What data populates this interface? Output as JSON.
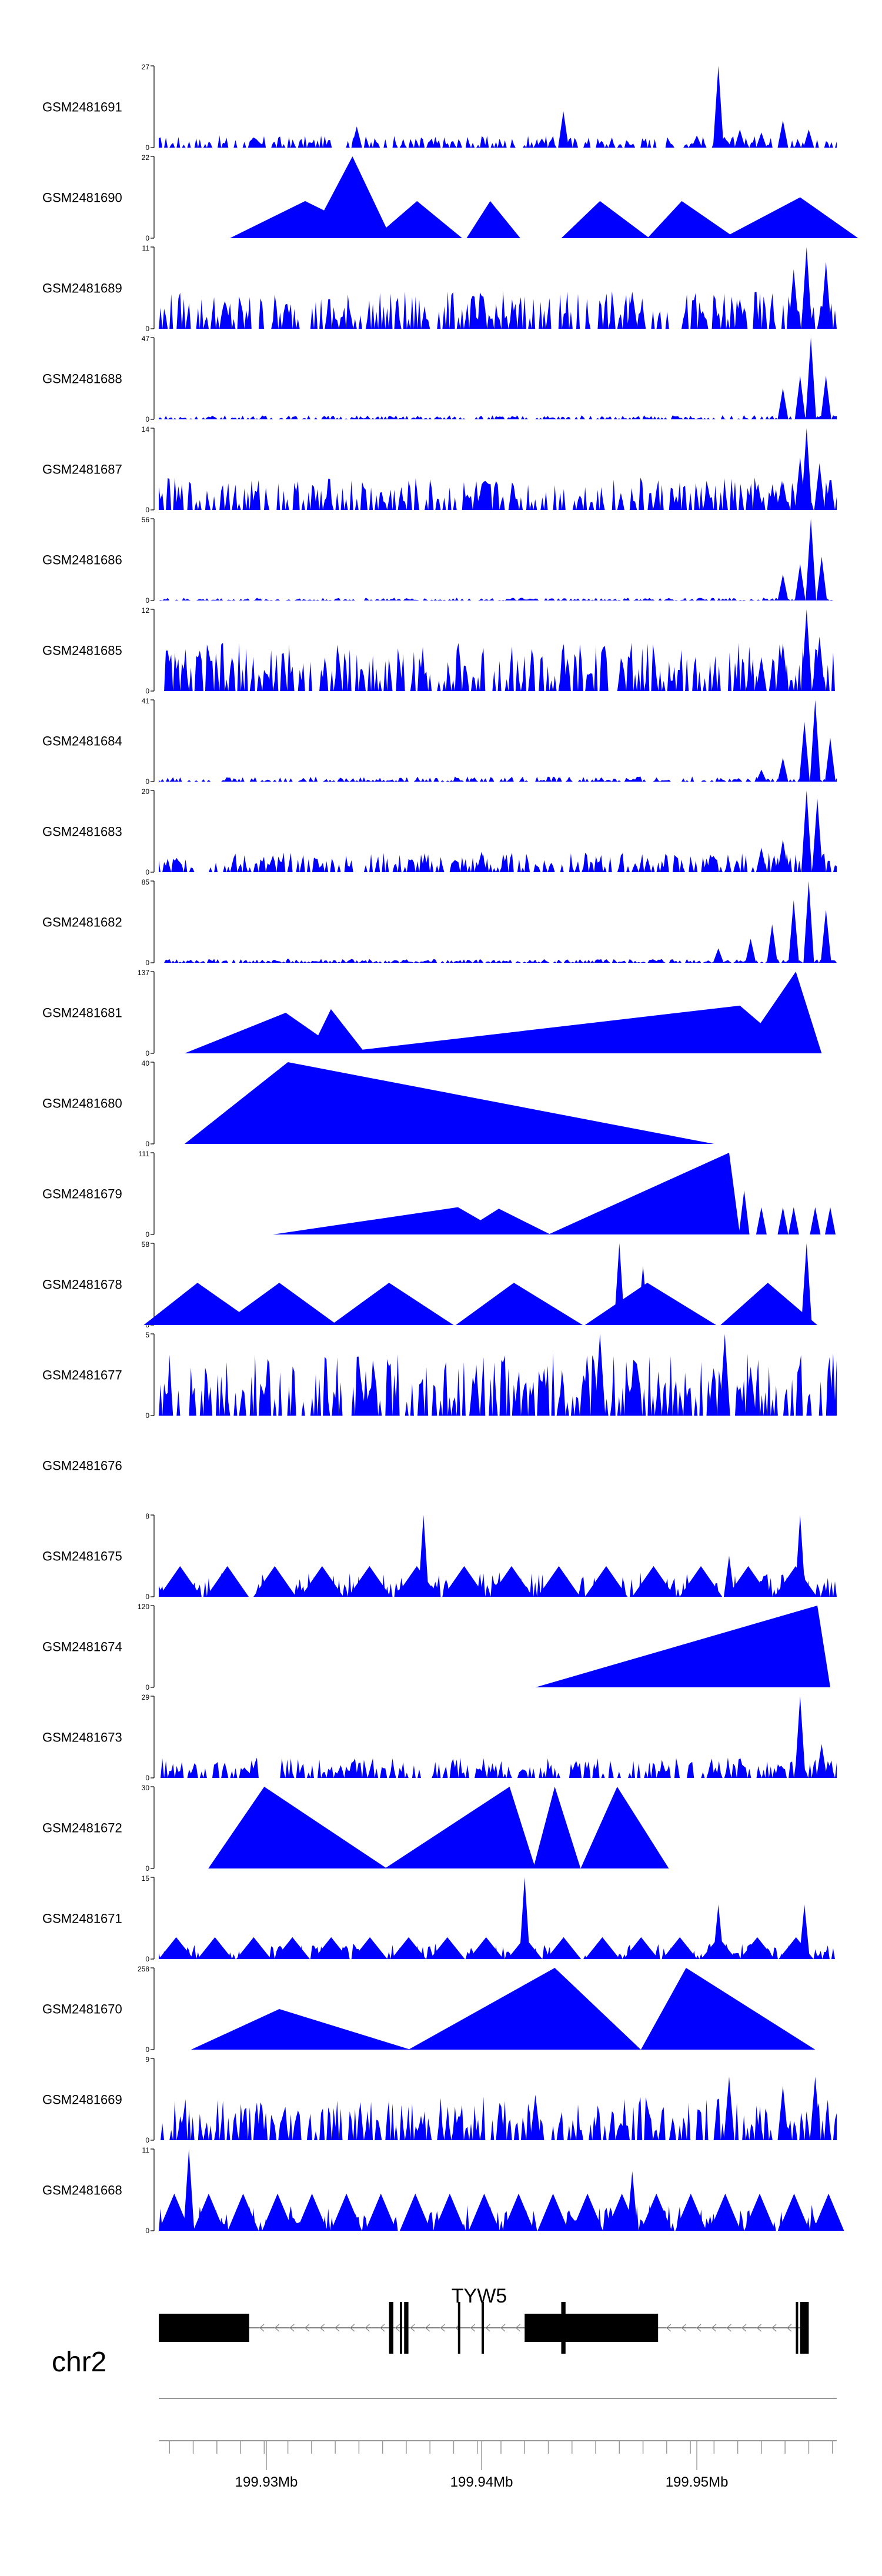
{
  "chart_data": {
    "type": "area",
    "title": "",
    "chromosome": "chr2",
    "xlim": [
      199.925,
      199.9565
    ],
    "x_unit": "Mb",
    "axis_ticks": [
      199.93,
      199.935,
      199.94,
      199.945,
      199.95,
      199.955
    ],
    "axis_labels": [
      "199.93Mb",
      "199.94Mb",
      "199.95Mb"
    ],
    "gene": {
      "name": "TYW5",
      "strand": "-",
      "exons": [
        [
          199.925,
          199.9292
        ],
        [
          199.9357,
          199.9359
        ],
        [
          199.9362,
          199.9363
        ],
        [
          199.9364,
          199.9366
        ],
        [
          199.9389,
          199.939
        ],
        [
          199.94,
          199.9401
        ],
        [
          199.942,
          199.9482
        ],
        [
          199.9437,
          199.9439
        ],
        [
          199.9546,
          199.9547
        ],
        [
          199.9548,
          199.9552
        ]
      ],
      "thick": [
        199.925,
        199.9292,
        199.942,
        199.9482
      ]
    },
    "series": [
      {
        "name": "GSM2481691",
        "ymax": 27,
        "peaks": [
          [
            199.9342,
            7
          ],
          [
            199.9428,
            3
          ],
          [
            199.9438,
            12
          ],
          [
            199.95,
            4
          ],
          [
            199.951,
            27
          ],
          [
            199.952,
            6
          ],
          [
            199.953,
            5
          ],
          [
            199.954,
            9
          ],
          [
            199.9552,
            6
          ]
        ],
        "noise": 2.5
      },
      {
        "name": "GSM2481690",
        "ymax": 22,
        "triangles": [
          [
            199.9283,
            199.9318,
            199.9353,
            10
          ],
          [
            199.932,
            199.934,
            199.9358,
            22
          ],
          [
            199.935,
            199.937,
            199.9391,
            10
          ],
          [
            199.9393,
            199.9404,
            199.9418,
            10
          ],
          [
            199.9437,
            199.9455,
            199.9478,
            10
          ],
          [
            199.9477,
            199.9493,
            199.9518,
            10
          ],
          [
            199.9512,
            199.9548,
            199.9575,
            11
          ]
        ]
      },
      {
        "name": "GSM2481689",
        "ymax": 11,
        "peaks": [
          [
            199.947,
            5
          ],
          [
            199.952,
            4
          ],
          [
            199.9545,
            8
          ],
          [
            199.9551,
            11
          ],
          [
            199.956,
            9
          ]
        ],
        "noise": 3.2
      },
      {
        "name": "GSM2481688",
        "ymax": 47,
        "peaks": [
          [
            199.954,
            18
          ],
          [
            199.9548,
            25
          ],
          [
            199.9553,
            47
          ],
          [
            199.956,
            25
          ]
        ],
        "noise": 1.5
      },
      {
        "name": "GSM2481687",
        "ymax": 14,
        "peaks": [
          [
            199.954,
            5
          ],
          [
            199.9548,
            9
          ],
          [
            199.9551,
            14
          ],
          [
            199.9557,
            8
          ]
        ],
        "noise": 3.5
      },
      {
        "name": "GSM2481686",
        "ymax": 56,
        "peaks": [
          [
            199.954,
            18
          ],
          [
            199.9548,
            25
          ],
          [
            199.9553,
            56
          ],
          [
            199.9558,
            30
          ]
        ],
        "noise": 1.2
      },
      {
        "name": "GSM2481685",
        "ymax": 12,
        "peaks": [
          [
            199.953,
            5
          ],
          [
            199.954,
            7
          ],
          [
            199.9551,
            12
          ],
          [
            199.9557,
            8
          ]
        ],
        "noise": 4.5
      },
      {
        "name": "GSM2481684",
        "ymax": 41,
        "peaks": [
          [
            199.953,
            6
          ],
          [
            199.954,
            12
          ],
          [
            199.955,
            30
          ],
          [
            199.9555,
            41
          ],
          [
            199.9562,
            22
          ]
        ],
        "noise": 1.6
      },
      {
        "name": "GSM2481683",
        "ymax": 20,
        "peaks": [
          [
            199.94,
            5
          ],
          [
            199.953,
            6
          ],
          [
            199.954,
            8
          ],
          [
            199.9551,
            20
          ],
          [
            199.9556,
            18
          ]
        ],
        "noise": 3
      },
      {
        "name": "GSM2481682",
        "ymax": 85,
        "peaks": [
          [
            199.951,
            15
          ],
          [
            199.9525,
            25
          ],
          [
            199.9535,
            40
          ],
          [
            199.9545,
            65
          ],
          [
            199.9552,
            85
          ],
          [
            199.956,
            55
          ]
        ],
        "noise": 2.5
      },
      {
        "name": "GSM2481681",
        "ymax": 137,
        "triangles": [
          [
            199.9262,
            199.9309,
            199.9336,
            68
          ],
          [
            199.932,
            199.933,
            199.9346,
            74
          ],
          [
            199.933,
            199.952,
            199.9546,
            80
          ],
          [
            199.952,
            199.9546,
            199.9558,
            137
          ]
        ]
      },
      {
        "name": "GSM2481680",
        "ymax": 40,
        "triangles": [
          [
            199.9262,
            199.931,
            199.9508,
            40
          ]
        ]
      },
      {
        "name": "GSM2481679",
        "ymax": 111,
        "triangles": [
          [
            199.9303,
            199.9389,
            199.9411,
            37
          ],
          [
            199.9389,
            199.9408,
            199.9432,
            35
          ],
          [
            199.9431,
            199.9515,
            199.952,
            111
          ]
        ],
        "peaks": [
          [
            199.9522,
            60
          ],
          [
            199.953,
            37
          ],
          [
            199.954,
            37
          ],
          [
            199.9545,
            37
          ],
          [
            199.9555,
            37
          ],
          [
            199.9562,
            37
          ]
        ]
      },
      {
        "name": "GSM2481678",
        "ymax": 58,
        "triangles": [
          [
            199.9243,
            199.9268,
            199.9296,
            30
          ],
          [
            199.9279,
            199.9306,
            199.9333,
            30
          ],
          [
            199.933,
            199.9357,
            199.9387,
            30
          ],
          [
            199.9388,
            199.9415,
            199.9447,
            30
          ],
          [
            199.9448,
            199.9477,
            199.9509,
            30
          ],
          [
            199.9511,
            199.9533,
            199.9556,
            30
          ]
        ],
        "peaks": [
          [
            199.9464,
            58
          ],
          [
            199.9475,
            42
          ],
          [
            199.953,
            22
          ],
          [
            199.9551,
            58
          ]
        ]
      },
      {
        "name": "GSM2481677",
        "ymax": 5,
        "peaks": [
          [
            199.9455,
            5
          ],
          [
            199.9513,
            5
          ],
          [
            199.9525,
            3
          ]
        ],
        "noise": 2.4
      },
      {
        "name": "GSM2481676",
        "ymax": null
      },
      {
        "name": "GSM2481675",
        "ymax": 8,
        "triangles_repeat": {
          "start": 199.925,
          "end": 199.9565,
          "step": 0.0022,
          "h": 3
        },
        "peaks": [
          [
            199.9373,
            8
          ],
          [
            199.9515,
            4
          ],
          [
            199.9548,
            8
          ]
        ],
        "noise": 1.5
      },
      {
        "name": "GSM2481674",
        "ymax": 120,
        "triangles": [
          [
            199.9425,
            199.9556,
            199.9562,
            120
          ]
        ]
      },
      {
        "name": "GSM2481673",
        "ymax": 29,
        "peaks": [
          [
            199.9548,
            29
          ],
          [
            199.9558,
            12
          ]
        ],
        "noise": 4.5
      },
      {
        "name": "GSM2481672",
        "ymax": 30,
        "triangles": [
          [
            199.9273,
            199.9299,
            199.9356,
            30
          ],
          [
            199.9355,
            199.9413,
            199.9425,
            30
          ],
          [
            199.9424,
            199.9434,
            199.9446,
            30
          ],
          [
            199.9446,
            199.9463,
            199.9487,
            30
          ]
        ]
      },
      {
        "name": "GSM2481671",
        "ymax": 15,
        "triangles_repeat": {
          "start": 199.925,
          "end": 199.9565,
          "step": 0.0018,
          "h": 4
        },
        "peaks": [
          [
            199.942,
            15
          ],
          [
            199.951,
            10
          ],
          [
            199.955,
            10
          ]
        ],
        "noise": 1.8
      },
      {
        "name": "GSM2481670",
        "ymax": 258,
        "triangles": [
          [
            199.9265,
            199.9306,
            199.9367,
            128
          ],
          [
            199.9366,
            199.9434,
            199.9474,
            258
          ],
          [
            199.9474,
            199.9495,
            199.9555,
            258
          ]
        ]
      },
      {
        "name": "GSM2481669",
        "ymax": 9,
        "peaks": [
          [
            199.9425,
            5
          ],
          [
            199.9515,
            7
          ],
          [
            199.954,
            6
          ],
          [
            199.9555,
            7
          ]
        ],
        "noise": 3
      },
      {
        "name": "GSM2481668",
        "ymax": 11,
        "triangles_repeat": {
          "start": 199.925,
          "end": 199.9565,
          "step": 0.0016,
          "h": 5
        },
        "peaks": [
          [
            199.9264,
            11
          ],
          [
            199.932,
            3
          ],
          [
            199.947,
            8
          ]
        ],
        "noise": 2.2
      }
    ]
  }
}
